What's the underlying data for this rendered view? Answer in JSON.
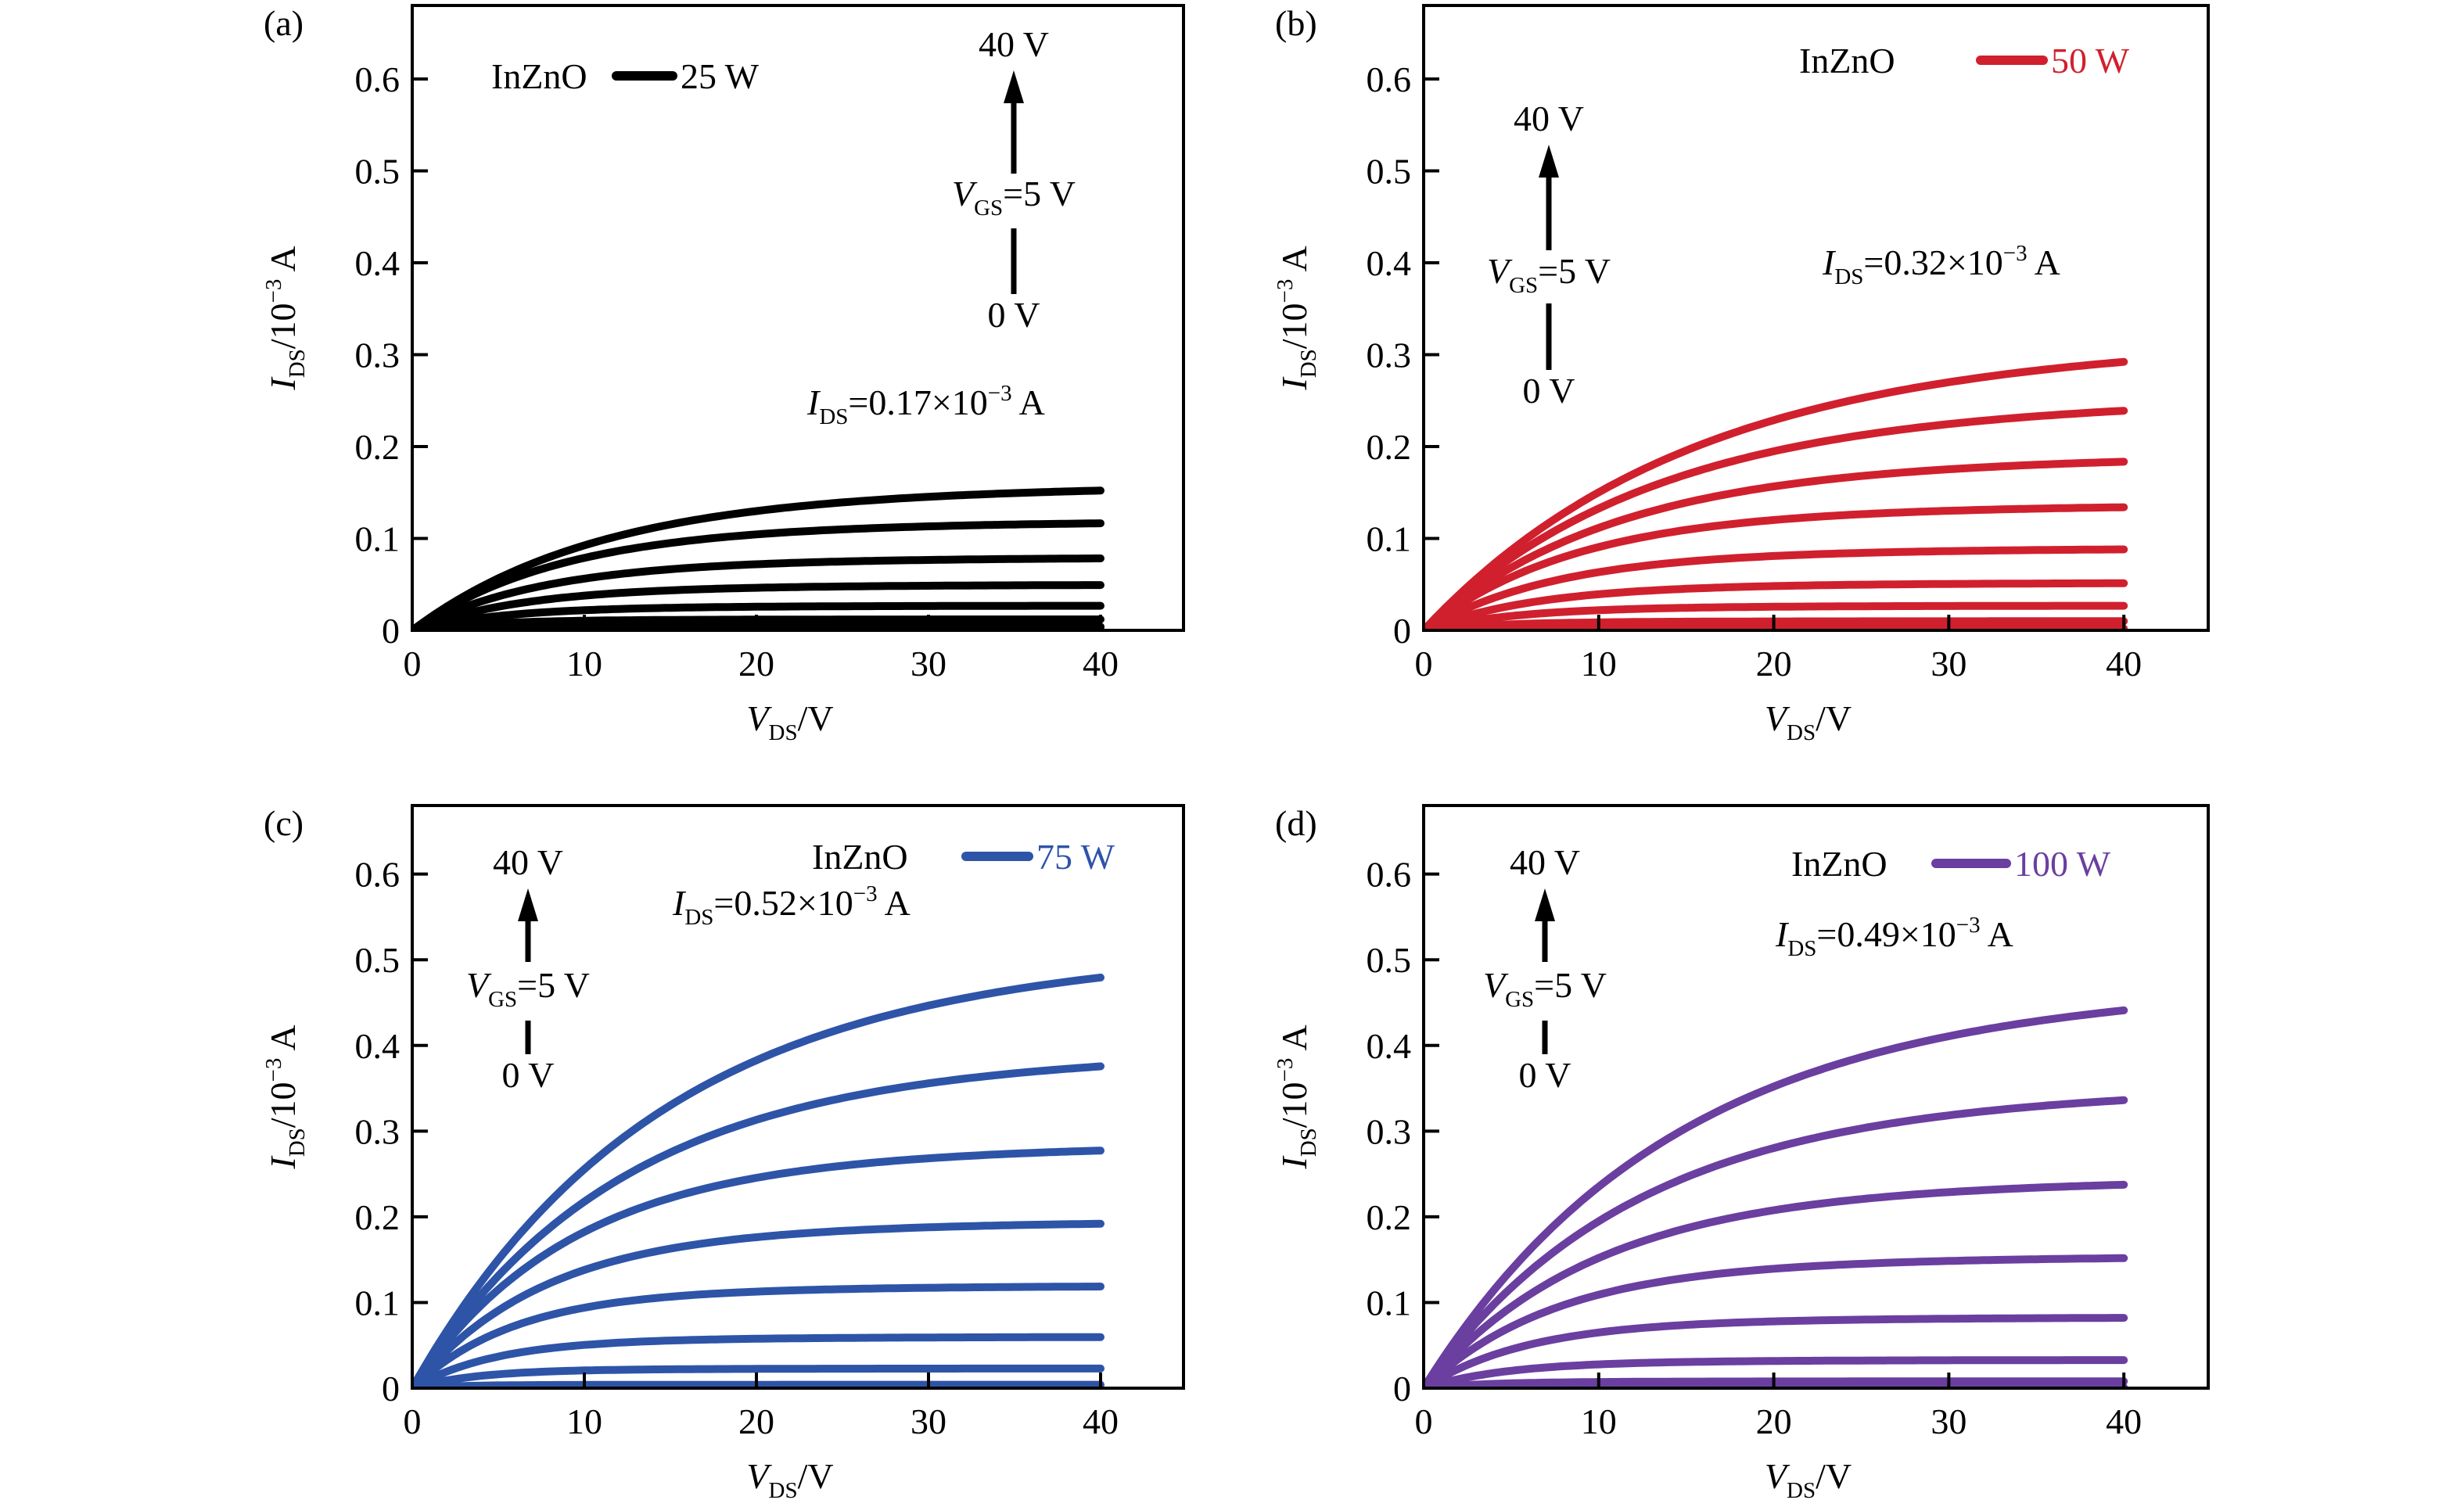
{
  "chart_data": [
    {
      "id": "a",
      "panel_label": "(a)",
      "type": "line",
      "color": "#000000",
      "material": "InZnO",
      "legend_label": "25 W",
      "legend_color": "#000000",
      "arrow": {
        "top": "40 V",
        "mid_base": "V",
        "mid_sub": "GS",
        "mid_rest": "=5 V",
        "bottom": "0 V"
      },
      "annotation": {
        "base": "I",
        "sub": "DS",
        "main": "=0.17×10",
        "sup": "−3",
        "unit": " A"
      },
      "xlabel": {
        "base": "V",
        "sub": "DS",
        "unit": "/V"
      },
      "ylabel": {
        "base": "I",
        "sub": "DS",
        "unit": "/10",
        "sup": "−3",
        "tail": " A"
      },
      "xlim": [
        0,
        40
      ],
      "ylim": [
        0,
        0.68
      ],
      "xticks": [
        "0",
        "10",
        "20",
        "30",
        "40"
      ],
      "yticks": [
        "0",
        "0.1",
        "0.2",
        "0.3",
        "0.4",
        "0.5",
        "0.6"
      ],
      "vsat": [
        0.16,
        0.12,
        0.08,
        0.05,
        0.027,
        0.012,
        0.004,
        0.001,
        0.0
      ],
      "vtau": [
        10,
        8,
        7,
        6,
        5,
        4,
        3,
        2,
        2
      ]
    },
    {
      "id": "b",
      "panel_label": "(b)",
      "type": "line",
      "color": "#d0202e",
      "material": "InZnO",
      "legend_label": "50 W",
      "legend_color": "#d0202e",
      "arrow": {
        "top": "40 V",
        "mid_base": "V",
        "mid_sub": "GS",
        "mid_rest": "=5 V",
        "bottom": "0 V"
      },
      "annotation": {
        "base": "I",
        "sub": "DS",
        "main": "=0.32×10",
        "sup": "−3",
        "unit": " A"
      },
      "xlabel": {
        "base": "V",
        "sub": "DS",
        "unit": "/V"
      },
      "ylabel": {
        "base": "I",
        "sub": "DS",
        "unit": "/10",
        "sup": "−3",
        "tail": " A"
      },
      "xlim": [
        0,
        40
      ],
      "ylim": [
        0,
        0.68
      ],
      "xticks": [
        "0",
        "10",
        "20",
        "30",
        "40"
      ],
      "yticks": [
        "0",
        "0.1",
        "0.2",
        "0.3",
        "0.4",
        "0.5",
        "0.6"
      ],
      "vsat": [
        0.325,
        0.258,
        0.193,
        0.138,
        0.09,
        0.052,
        0.027,
        0.01,
        0.002
      ],
      "vtau": [
        14,
        12,
        10,
        8,
        7,
        6,
        5,
        4,
        3
      ]
    },
    {
      "id": "c",
      "panel_label": "(c)",
      "type": "line",
      "color": "#2e54a8",
      "material": "InZnO",
      "legend_label": "75 W",
      "legend_color": "#2e54a8",
      "arrow": {
        "top": "40 V",
        "mid_base": "V",
        "mid_sub": "GS",
        "mid_rest": "=5 V",
        "bottom": "0 V"
      },
      "annotation": {
        "base": "I",
        "sub": "DS",
        "main": "=0.52×10",
        "sup": "−3",
        "unit": " A"
      },
      "xlabel": {
        "base": "V",
        "sub": "DS",
        "unit": "/V"
      },
      "ylabel": {
        "base": "I",
        "sub": "DS",
        "unit": "/10",
        "sup": "−3",
        "tail": " A"
      },
      "xlim": [
        0,
        40
      ],
      "ylim": [
        0,
        0.68
      ],
      "xticks": [
        "0",
        "10",
        "20",
        "30",
        "40"
      ],
      "yticks": [
        "0",
        "0.1",
        "0.2",
        "0.3",
        "0.4",
        "0.5",
        "0.6"
      ],
      "vsat": [
        0.525,
        0.4,
        0.287,
        0.196,
        0.12,
        0.06,
        0.023,
        0.004
      ],
      "vtau": [
        13,
        11,
        8.5,
        7,
        5.5,
        4.5,
        3.5,
        2.5
      ]
    },
    {
      "id": "d",
      "panel_label": "(d)",
      "type": "line",
      "color": "#6a3fa0",
      "material": "InZnO",
      "legend_label": "100 W",
      "legend_color": "#6a3fa0",
      "arrow": {
        "top": "40 V",
        "mid_base": "V",
        "mid_sub": "GS",
        "mid_rest": "=5 V",
        "bottom": "0 V"
      },
      "annotation": {
        "base": "I",
        "sub": "DS",
        "main": "=0.49×10",
        "sup": "−3",
        "unit": " A"
      },
      "xlabel": {
        "base": "V",
        "sub": "DS",
        "unit": "/V"
      },
      "ylabel": {
        "base": "I",
        "sub": "DS",
        "unit": "/10",
        "sup": "−3",
        "tail": " A"
      },
      "xlim": [
        0,
        40
      ],
      "ylim": [
        0,
        0.68
      ],
      "xticks": [
        "0",
        "10",
        "20",
        "30",
        "40"
      ],
      "yticks": [
        "0",
        "0.1",
        "0.2",
        "0.3",
        "0.4",
        "0.5",
        "0.6"
      ],
      "vsat": [
        0.483,
        0.358,
        0.247,
        0.155,
        0.083,
        0.033,
        0.008,
        0.001
      ],
      "vtau": [
        13,
        11,
        9,
        7,
        5.5,
        4.5,
        3.5,
        2.5
      ]
    }
  ]
}
